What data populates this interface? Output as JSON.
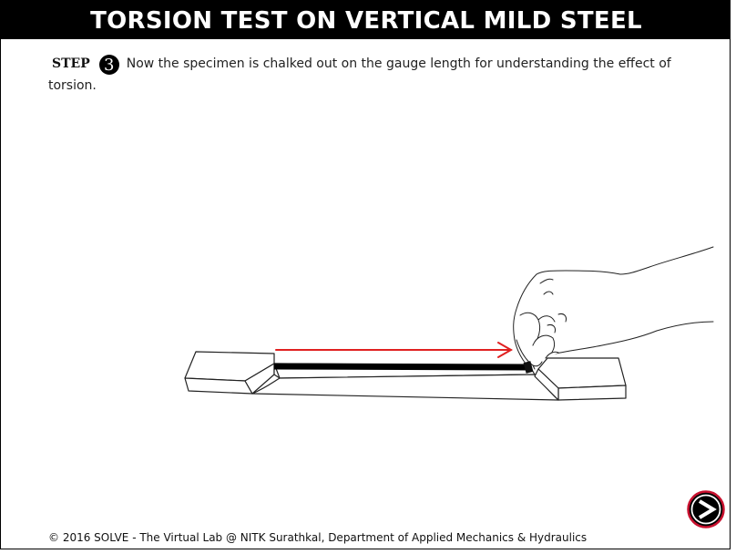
{
  "title": "TORSION TEST ON VERTICAL MILD STEEL",
  "step": {
    "label": "STEP",
    "number": "3",
    "text": "Now the specimen is chalked out on the gauge length for understanding the effect of torsion."
  },
  "footer": "© 2016 SOLVE - The Virtual Lab @ NITK Surathkal, Department of Applied Mechanics & Hydraulics",
  "next_button": {
    "icon": "next-arrow-icon"
  },
  "colors": {
    "title_bg": "#000000",
    "title_text": "#ffffff",
    "arrow": "#e02020",
    "chalk_line": "#000000",
    "next_button_ring": "#c8102e"
  }
}
